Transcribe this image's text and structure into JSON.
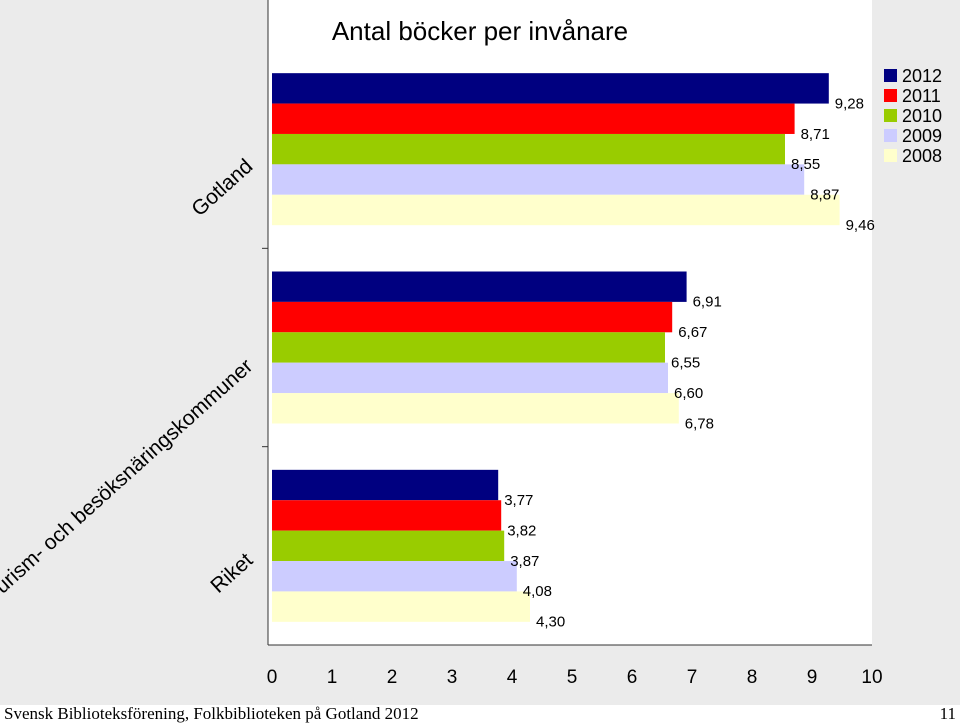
{
  "chart_data": {
    "type": "bar",
    "orientation": "horizontal",
    "title": "Antal böcker per invånare",
    "categories": [
      "Gotland",
      "Turism- och besöksnäringskommuner",
      "Riket"
    ],
    "series": [
      {
        "name": "2012",
        "color": "#000080",
        "values": [
          9.28,
          6.91,
          3.77
        ],
        "labels": [
          "9,28",
          "6,91",
          "3,77"
        ]
      },
      {
        "name": "2011",
        "color": "#ff0000",
        "values": [
          8.71,
          6.67,
          3.82
        ],
        "labels": [
          "8,71",
          "6,67",
          "3,82"
        ]
      },
      {
        "name": "2010",
        "color": "#99cc00",
        "values": [
          8.55,
          6.55,
          3.87
        ],
        "labels": [
          "8,55",
          "6,55",
          "3,87"
        ]
      },
      {
        "name": "2009",
        "color": "#ccccff",
        "values": [
          8.87,
          6.6,
          4.08
        ],
        "labels": [
          "8,87",
          "6,60",
          "4,08"
        ]
      },
      {
        "name": "2008",
        "color": "#ffffcc",
        "values": [
          9.46,
          6.78,
          4.3
        ],
        "labels": [
          "9,46",
          "6,78",
          "4,30"
        ]
      }
    ],
    "xlim": [
      0,
      10
    ],
    "xticks": [
      "0",
      "1",
      "2",
      "3",
      "4",
      "5",
      "6",
      "7",
      "8",
      "9",
      "10"
    ],
    "legend": "top-right",
    "grid": false,
    "background_color": "#ebebeb"
  },
  "footer": {
    "source": "Svensk Biblioteksförening, Folkbiblioteken på Gotland 2012",
    "page_number": "11"
  }
}
